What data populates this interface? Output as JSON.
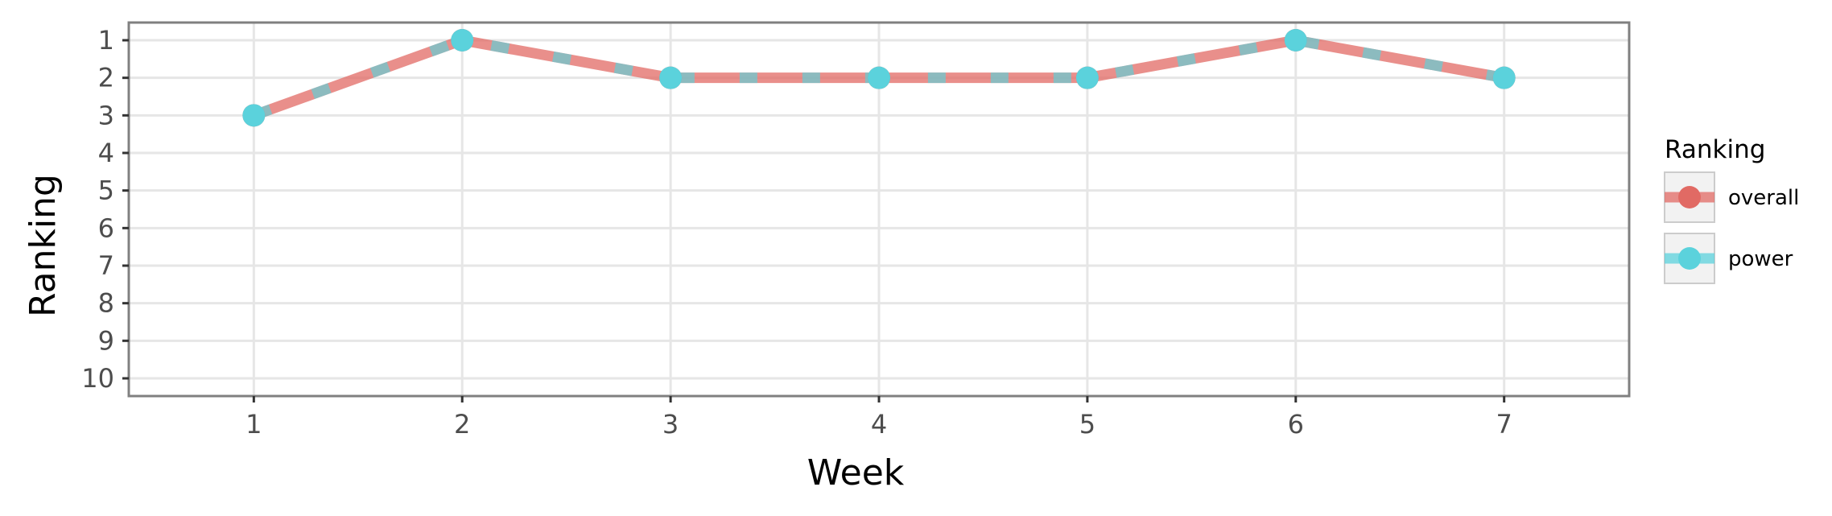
{
  "chart_data": {
    "type": "line",
    "title": "",
    "xlabel": "Week",
    "ylabel": "Ranking",
    "x": [
      1,
      2,
      3,
      4,
      5,
      6,
      7
    ],
    "x_ticks": [
      "1",
      "2",
      "3",
      "4",
      "5",
      "6",
      "7"
    ],
    "y_ticks": [
      "1",
      "2",
      "3",
      "4",
      "5",
      "6",
      "7",
      "8",
      "9",
      "10"
    ],
    "y_reversed": true,
    "xlim": [
      0.4,
      7.6
    ],
    "ylim": [
      1,
      10
    ],
    "grid": true,
    "legend": {
      "title": "Ranking",
      "position": "right"
    },
    "series": [
      {
        "name": "overall",
        "color": "#E16A64",
        "values": [
          3,
          1,
          2,
          2,
          2,
          1,
          2
        ]
      },
      {
        "name": "power",
        "color": "#5BD2DC",
        "values": [
          3,
          1,
          2,
          2,
          2,
          1,
          2
        ]
      }
    ]
  }
}
